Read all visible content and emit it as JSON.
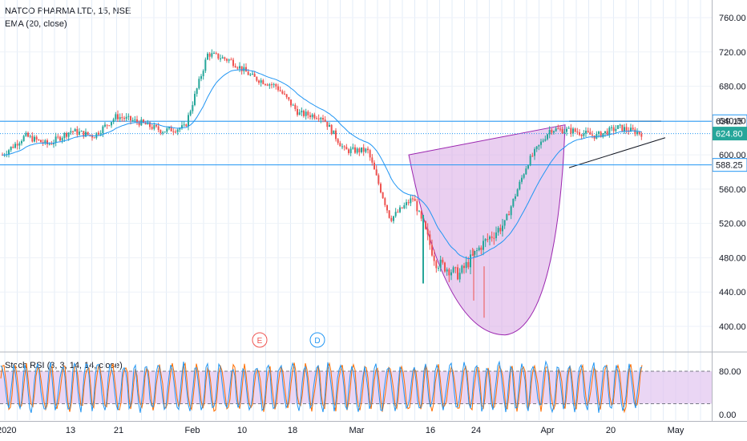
{
  "header": {
    "title": "NATCO PHARMA LTD, 15, NSE",
    "ema_label": "EMA (20, close)",
    "rsi_label": "Stoch RSI (3, 3, 14, 14, close)"
  },
  "colors": {
    "up": "#26a69a",
    "down": "#ef5350",
    "ema": "#2196f3",
    "hline": "#2196f3",
    "shape_fill": "#d9a7e3",
    "shape_stroke": "#9c27b0",
    "rsi_band": "#e1c4f0",
    "rsi_k": "#2196f3",
    "rsi_d": "#ff6d00",
    "price_badge": "#26a69a"
  },
  "chart_data": [
    {
      "type": "candlestick",
      "title": "NATCO PHARMA LTD, 15, NSE",
      "interval": "15",
      "exchange": "NSE",
      "ylim": [
        380,
        770
      ],
      "y_ticks": [
        "760.00",
        "720.00",
        "680.00",
        "640.00",
        "600.00",
        "560.00",
        "520.00",
        "480.00",
        "440.00",
        "400.00"
      ],
      "x_ticks": [
        "2020",
        "13",
        "21",
        "Feb",
        "10",
        "18",
        "Mar",
        "16",
        "24",
        "Apr",
        "20",
        "May"
      ],
      "price_path": [
        {
          "x": "2020",
          "y": 600
        },
        {
          "x": "2020",
          "y": 622
        },
        {
          "x": "2020",
          "y": 612
        },
        {
          "x": "13",
          "y": 628
        },
        {
          "x": "13",
          "y": 622
        },
        {
          "x": "21",
          "y": 645
        },
        {
          "x": "21",
          "y": 638
        },
        {
          "x": "Feb",
          "y": 628
        },
        {
          "x": "Feb",
          "y": 632
        },
        {
          "x": "10",
          "y": 718
        },
        {
          "x": "10",
          "y": 710
        },
        {
          "x": "10",
          "y": 690
        },
        {
          "x": "10",
          "y": 680
        },
        {
          "x": "18",
          "y": 648
        },
        {
          "x": "18",
          "y": 645
        },
        {
          "x": "Mar",
          "y": 605
        },
        {
          "x": "Mar",
          "y": 605
        },
        {
          "x": "16",
          "y": 525
        },
        {
          "x": "16",
          "y": 550
        },
        {
          "x": "24",
          "y": 475
        },
        {
          "x": "24",
          "y": 460
        },
        {
          "x": "Apr",
          "y": 495
        },
        {
          "x": "Apr",
          "y": 520
        },
        {
          "x": "Apr",
          "y": 590
        },
        {
          "x": "Apr",
          "y": 630
        },
        {
          "x": "20",
          "y": 628
        },
        {
          "x": "20",
          "y": 622
        },
        {
          "x": "20",
          "y": 632
        },
        {
          "x": "20",
          "y": 625
        }
      ],
      "horizontal_lines": [
        {
          "value": 639.15,
          "label": "639.15"
        },
        {
          "value": 624.8,
          "label": "624.80",
          "current": true
        },
        {
          "value": 588.25,
          "label": "588.25"
        }
      ],
      "series": [
        {
          "name": "EMA (20, close)"
        }
      ],
      "events": [
        {
          "label": "E",
          "x": "10"
        },
        {
          "label": "D",
          "x": "18"
        }
      ]
    },
    {
      "type": "line",
      "title": "Stoch RSI (3, 3, 14, 14, close)",
      "ylim": [
        -5,
        100
      ],
      "y_ticks": [
        "80.00",
        "0.00"
      ],
      "band": [
        20,
        80
      ]
    }
  ]
}
